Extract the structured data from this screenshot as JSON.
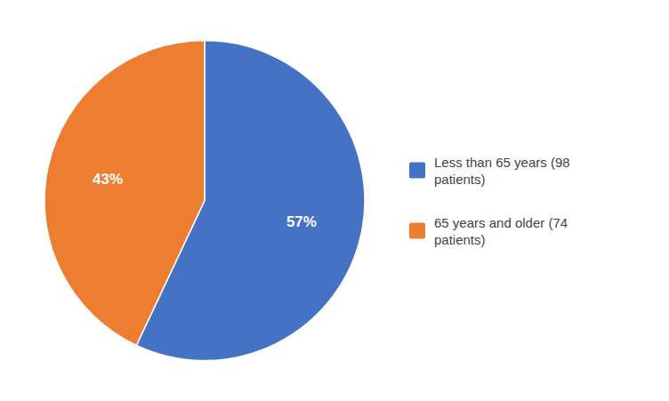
{
  "chart_data": {
    "type": "pie",
    "categories": [
      "Less than 65 years (98\npatients)",
      "65 years and older (74\npatients)"
    ],
    "values": [
      57,
      43
    ],
    "value_labels": [
      "57%",
      "43%"
    ],
    "colors": [
      "#4472C4",
      "#ED7D31"
    ],
    "data_labels": true,
    "legend": "right"
  }
}
